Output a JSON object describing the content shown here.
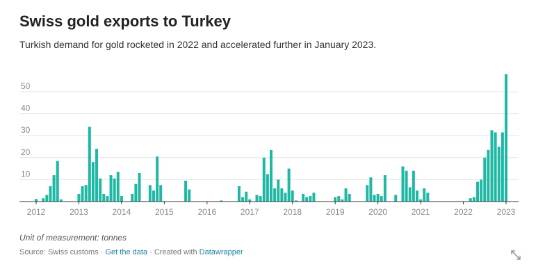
{
  "chart_data": {
    "type": "bar",
    "title": "Swiss gold exports to Turkey",
    "subtitle": "Turkish demand for gold rocketed in 2022 and accelerated further in January 2023.",
    "note": "Unit of measurement: tonnes",
    "source": "Source: Swiss customs",
    "separator": "·",
    "data_link": "Get the data",
    "credit": "Created with",
    "credit_link": "Datawrapper",
    "color": "#1fb8a4",
    "grid": true,
    "ylim": [
      0,
      60
    ],
    "yticks": [
      10,
      20,
      30,
      40,
      50
    ],
    "categories": [
      "2012",
      null,
      null,
      null,
      null,
      null,
      null,
      null,
      null,
      null,
      null,
      null,
      "2013",
      null,
      null,
      null,
      null,
      null,
      null,
      null,
      null,
      null,
      null,
      null,
      "2014",
      null,
      null,
      null,
      null,
      null,
      null,
      null,
      null,
      null,
      null,
      null,
      "2015",
      null,
      null,
      null,
      null,
      null,
      null,
      null,
      null,
      null,
      null,
      null,
      "2016",
      null,
      null,
      null,
      null,
      null,
      null,
      null,
      null,
      null,
      null,
      null,
      "2017",
      null,
      null,
      null,
      null,
      null,
      null,
      null,
      null,
      null,
      null,
      null,
      "2018",
      null,
      null,
      null,
      null,
      null,
      null,
      null,
      null,
      null,
      null,
      null,
      "2019",
      null,
      null,
      null,
      null,
      null,
      null,
      null,
      null,
      null,
      null,
      null,
      "2020",
      null,
      null,
      null,
      null,
      null,
      null,
      null,
      null,
      null,
      null,
      null,
      "2021",
      null,
      null,
      null,
      null,
      null,
      null,
      null,
      null,
      null,
      null,
      null,
      "2022",
      null,
      null,
      null,
      null,
      null,
      null,
      null,
      null,
      null,
      null,
      null,
      "2023"
    ],
    "values": [
      1.2,
      0,
      1.5,
      3,
      7,
      12,
      18.5,
      1,
      0,
      0,
      0,
      0,
      3.5,
      7,
      7.5,
      34,
      18,
      24,
      10.5,
      3.5,
      2.5,
      12,
      10.5,
      13.5,
      2.5,
      0,
      0,
      3.5,
      8,
      13,
      0,
      0,
      7.5,
      5,
      20.5,
      7.5,
      0,
      0,
      0,
      0,
      0,
      0,
      9.5,
      5.5,
      0,
      0,
      0,
      0,
      0,
      0,
      0,
      0,
      0.5,
      0,
      0,
      0,
      0,
      7,
      2,
      4.5,
      1,
      0,
      3,
      2.5,
      20,
      12.5,
      23.5,
      6,
      10,
      6,
      4,
      15,
      5,
      0.5,
      0,
      3.5,
      2,
      2.5,
      4,
      0,
      0,
      0,
      0,
      0,
      2,
      2.5,
      1,
      6,
      3.5,
      0,
      0,
      0,
      0,
      7.5,
      11,
      3,
      3.5,
      2.5,
      12,
      0,
      0,
      3,
      0,
      16,
      14,
      6.5,
      14,
      5,
      1,
      6,
      4,
      0,
      0,
      0,
      0,
      0,
      0,
      0,
      0,
      0,
      0,
      0,
      1.5,
      2,
      9,
      10,
      20,
      23.5,
      32.5,
      31.5,
      25,
      31.5,
      58
    ]
  }
}
